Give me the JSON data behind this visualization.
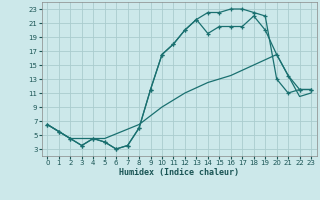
{
  "xlabel": "Humidex (Indice chaleur)",
  "bg_color": "#cce8ea",
  "grid_color": "#aaccce",
  "line_color": "#1a7070",
  "xlim": [
    -0.5,
    23.5
  ],
  "ylim": [
    2.0,
    24.0
  ],
  "xticks": [
    0,
    1,
    2,
    3,
    4,
    5,
    6,
    7,
    8,
    9,
    10,
    11,
    12,
    13,
    14,
    15,
    16,
    17,
    18,
    19,
    20,
    21,
    22,
    23
  ],
  "yticks": [
    3,
    5,
    7,
    9,
    11,
    13,
    15,
    17,
    19,
    21,
    23
  ],
  "curve_upper_x": [
    0,
    1,
    2,
    3,
    4,
    5,
    6,
    7,
    8,
    9,
    10,
    11,
    12,
    13,
    14,
    15,
    16,
    17,
    18,
    19,
    20,
    21,
    22,
    23
  ],
  "curve_upper_y": [
    6.5,
    5.5,
    4.5,
    3.5,
    4.5,
    4.0,
    3.0,
    3.5,
    6.0,
    11.5,
    16.5,
    18.0,
    20.0,
    21.5,
    22.5,
    22.5,
    23.0,
    23.0,
    22.5,
    22.0,
    13.0,
    11.0,
    11.5,
    11.5
  ],
  "curve_mid_x": [
    0,
    1,
    2,
    3,
    4,
    5,
    6,
    7,
    8,
    9,
    10,
    11,
    12,
    13,
    14,
    15,
    16,
    17,
    18,
    19,
    20,
    21,
    22,
    23
  ],
  "curve_mid_y": [
    6.5,
    5.5,
    4.5,
    3.5,
    4.5,
    4.0,
    3.0,
    3.5,
    6.0,
    11.5,
    16.5,
    18.0,
    20.0,
    21.5,
    19.5,
    20.5,
    20.5,
    20.5,
    22.0,
    20.0,
    16.5,
    13.5,
    11.5,
    11.5
  ],
  "curve_low_x": [
    0,
    2,
    5,
    8,
    10,
    12,
    14,
    16,
    18,
    20,
    22,
    23
  ],
  "curve_low_y": [
    6.5,
    4.5,
    4.5,
    6.5,
    9.0,
    11.0,
    12.5,
    13.5,
    15.0,
    16.5,
    10.5,
    11.0
  ],
  "xlabel_fontsize": 6,
  "tick_fontsize": 5
}
